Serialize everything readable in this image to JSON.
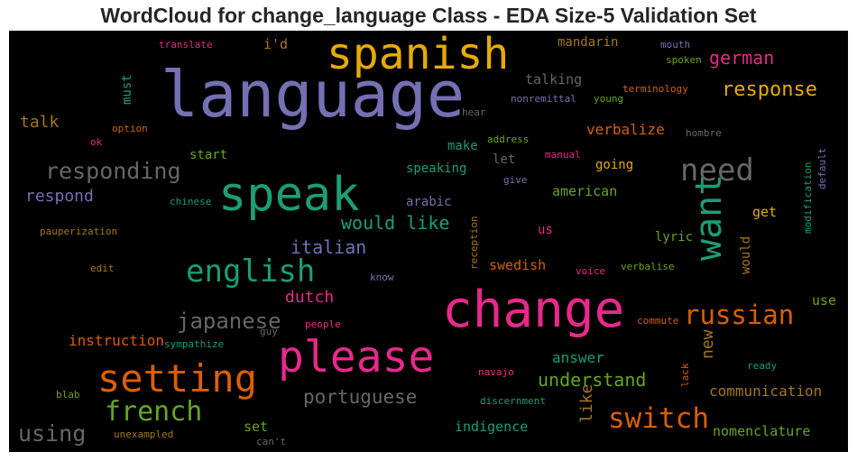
{
  "chart_data": {
    "type": "wordcloud",
    "title": "WordCloud for change_language Class - EDA Size-5 Validation Set",
    "words": [
      {
        "text": "language",
        "color": "#7570b3"
      },
      {
        "text": "change",
        "color": "#e7298a"
      },
      {
        "text": "speak",
        "color": "#1b9e77"
      },
      {
        "text": "spanish",
        "color": "#e6ab02"
      },
      {
        "text": "please",
        "color": "#e7298a"
      },
      {
        "text": "setting",
        "color": "#d95f02"
      },
      {
        "text": "want",
        "color": "#1b9e77"
      },
      {
        "text": "english",
        "color": "#1b9e77"
      },
      {
        "text": "switch",
        "color": "#d95f02"
      },
      {
        "text": "need",
        "color": "#666666"
      },
      {
        "text": "french",
        "color": "#66a61e"
      },
      {
        "text": "russian",
        "color": "#d95f02"
      },
      {
        "text": "responding",
        "color": "#666666"
      },
      {
        "text": "japanese",
        "color": "#666666"
      },
      {
        "text": "response",
        "color": "#e6ab02"
      },
      {
        "text": "portuguese",
        "color": "#666666"
      },
      {
        "text": "understand",
        "color": "#66a61e"
      },
      {
        "text": "using",
        "color": "#666666"
      },
      {
        "text": "would like",
        "color": "#1b9e77"
      },
      {
        "text": "italian",
        "color": "#7570b3"
      },
      {
        "text": "german",
        "color": "#e7298a"
      },
      {
        "text": "dutch",
        "color": "#e7298a"
      },
      {
        "text": "respond",
        "color": "#7570b3"
      },
      {
        "text": "like",
        "color": "#a6761d"
      },
      {
        "text": "new",
        "color": "#a6761d"
      },
      {
        "text": "answer",
        "color": "#1b9e77"
      },
      {
        "text": "verbalize",
        "color": "#d95f02"
      },
      {
        "text": "talk",
        "color": "#a6761d"
      },
      {
        "text": "communication",
        "color": "#a6761d"
      },
      {
        "text": "instruction",
        "color": "#d95f02"
      },
      {
        "text": "swedish",
        "color": "#d95f02"
      },
      {
        "text": "talking",
        "color": "#666666"
      },
      {
        "text": "indigence",
        "color": "#1b9e77"
      },
      {
        "text": "nomenclature",
        "color": "#66a61e"
      },
      {
        "text": "american",
        "color": "#66a61e"
      },
      {
        "text": "mandarin",
        "color": "#a6761d"
      },
      {
        "text": "speaking",
        "color": "#1b9e77"
      },
      {
        "text": "arabic",
        "color": "#7570b3"
      },
      {
        "text": "start",
        "color": "#66a61e"
      },
      {
        "text": "make",
        "color": "#1b9e77"
      },
      {
        "text": "let",
        "color": "#666666"
      },
      {
        "text": "going",
        "color": "#e6ab02"
      },
      {
        "text": "get",
        "color": "#e6ab02"
      },
      {
        "text": "i'd",
        "color": "#a6761d"
      },
      {
        "text": "must",
        "color": "#1b9e77"
      },
      {
        "text": "lyric",
        "color": "#66a61e"
      },
      {
        "text": "us",
        "color": "#e7298a"
      },
      {
        "text": "set",
        "color": "#66a61e"
      },
      {
        "text": "use",
        "color": "#66a61e"
      },
      {
        "text": "would",
        "color": "#a6761d"
      },
      {
        "text": "translate",
        "color": "#e7298a"
      },
      {
        "text": "mouth",
        "color": "#7570b3"
      },
      {
        "text": "spoken",
        "color": "#66a61e"
      },
      {
        "text": "terminology",
        "color": "#d95f02"
      },
      {
        "text": "nonremittal",
        "color": "#7570b3"
      },
      {
        "text": "young",
        "color": "#66a61e"
      },
      {
        "text": "hear",
        "color": "#666666"
      },
      {
        "text": "option",
        "color": "#d95f02"
      },
      {
        "text": "ok",
        "color": "#e7298a"
      },
      {
        "text": "address",
        "color": "#66a61e"
      },
      {
        "text": "manual",
        "color": "#e7298a"
      },
      {
        "text": "hombre",
        "color": "#666666"
      },
      {
        "text": "give",
        "color": "#7570b3"
      },
      {
        "text": "chinese",
        "color": "#1b9e77"
      },
      {
        "text": "pauperization",
        "color": "#a6761d"
      },
      {
        "text": "reception",
        "color": "#a6761d"
      },
      {
        "text": "modification",
        "color": "#1b9e77"
      },
      {
        "text": "default",
        "color": "#7570b3"
      },
      {
        "text": "edit",
        "color": "#a6761d"
      },
      {
        "text": "know",
        "color": "#7570b3"
      },
      {
        "text": "voice",
        "color": "#e7298a"
      },
      {
        "text": "verbalise",
        "color": "#66a61e"
      },
      {
        "text": "people",
        "color": "#e7298a"
      },
      {
        "text": "guy",
        "color": "#666666"
      },
      {
        "text": "commute",
        "color": "#d95f02"
      },
      {
        "text": "sympathize",
        "color": "#1b9e77"
      },
      {
        "text": "navajo",
        "color": "#e7298a"
      },
      {
        "text": "lack",
        "color": "#d95f02"
      },
      {
        "text": "ready",
        "color": "#1b9e77"
      },
      {
        "text": "blab",
        "color": "#66a61e"
      },
      {
        "text": "discernment",
        "color": "#1b9e77"
      },
      {
        "text": "unexampled",
        "color": "#a6761d"
      },
      {
        "text": "can't",
        "color": "#666666"
      }
    ]
  }
}
